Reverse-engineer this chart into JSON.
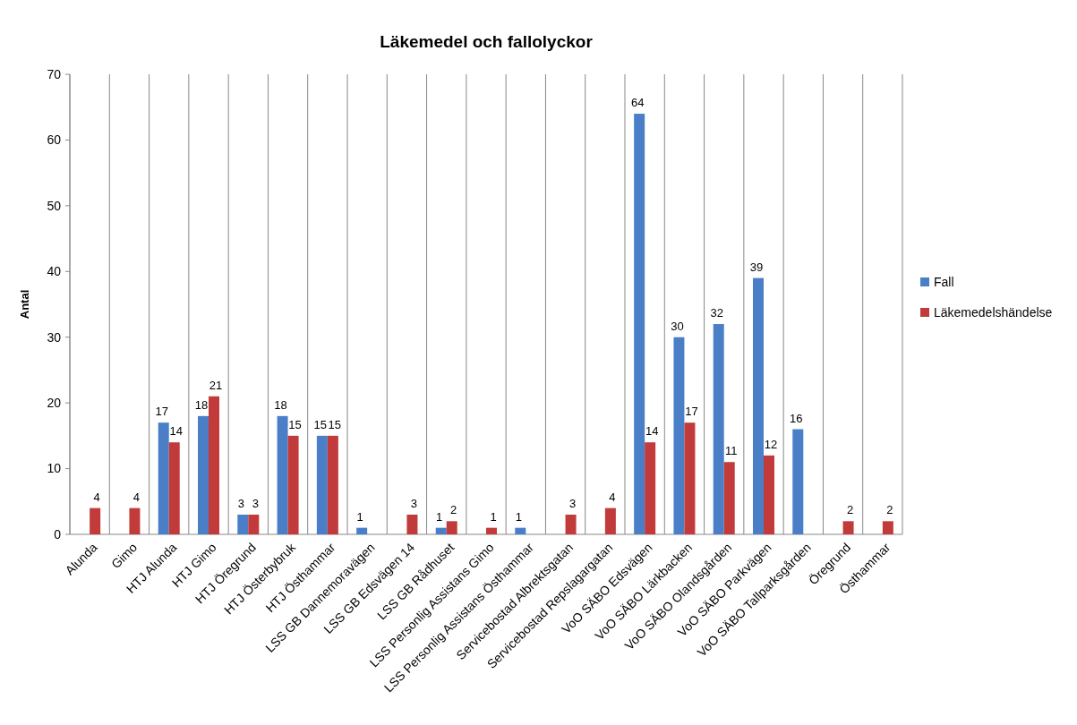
{
  "chart_data": {
    "type": "bar",
    "title": "Läkemedel och fallolyckor",
    "ylabel": "Antal",
    "categories": [
      "Alunda",
      "Gimo",
      "HTJ Alunda",
      "HTJ Gimo",
      "HTJ Öregrund",
      "HTJ Österbybruk",
      "HTJ Östhammar",
      "LSS GB Dannemoravägen",
      "LSS GB Edsvägen 14",
      "LSS GB Rådhuset",
      "LSS Personlig Assistans Gimo",
      "LSS Personlig Assistans Östhammar",
      "Servicebostad Albrektsgatan",
      "Servicebostad Repslagargatan",
      "VoO SÄBO Edsvägen",
      "VoO SÄBO Lärkbacken",
      "VoO SÄBO Olandsgården",
      "VoO SÄBO Parkvägen",
      "VoO SÄBO Tallparksgården",
      "Öregrund",
      "Östhammar"
    ],
    "series": [
      {
        "name": "Fall",
        "color": "#4a7fc8",
        "values": [
          null,
          null,
          17,
          18,
          3,
          18,
          15,
          1,
          null,
          1,
          null,
          1,
          null,
          null,
          64,
          30,
          32,
          39,
          16,
          null,
          null
        ]
      },
      {
        "name": "Läkemedelshändelse",
        "color": "#c23b3b",
        "values": [
          4,
          4,
          14,
          21,
          3,
          15,
          15,
          null,
          3,
          2,
          1,
          null,
          3,
          4,
          14,
          17,
          11,
          12,
          null,
          2,
          2
        ]
      }
    ],
    "ylim": [
      0,
      70
    ],
    "yticks": [
      0,
      10,
      20,
      30,
      40,
      50,
      60,
      70
    ],
    "grid": "x",
    "legend": "right",
    "data_labels": true
  }
}
